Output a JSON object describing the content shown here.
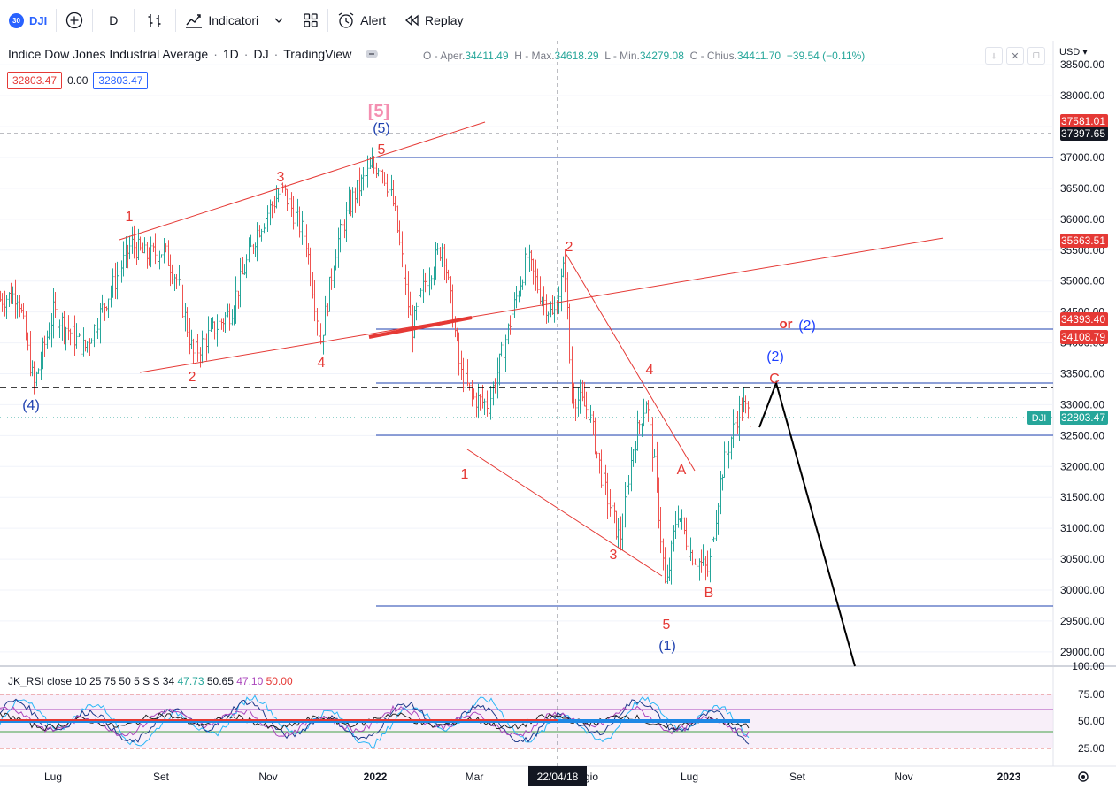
{
  "toolbar": {
    "symbol_badge": "30",
    "symbol": "DJI",
    "interval": "D",
    "indicators_label": "Indicatori",
    "alert_label": "Alert",
    "replay_label": "Replay"
  },
  "legend": {
    "title": "Indice Dow Jones Industrial Average",
    "interval": "1D",
    "exchange": "DJ",
    "source": "TradingView",
    "open_label": "O - Aper.",
    "open": "34411.49",
    "high_label": "H - Max.",
    "high": "34618.29",
    "low_label": "L - Min.",
    "low": "34279.08",
    "close_label": "C - Chius.",
    "close": "34411.70",
    "change": "−39.54",
    "change_pct": "(−0.11%)",
    "val1": "32803.47",
    "val2": "0.00",
    "val3": "32803.47"
  },
  "currency": "USD",
  "price_axis": [
    "38500.00",
    "38000.00",
    "37500.00",
    "37000.00",
    "36500.00",
    "36000.00",
    "35500.00",
    "35000.00",
    "34500.00",
    "34000.00",
    "33500.00",
    "33000.00",
    "32500.00",
    "32000.00",
    "31500.00",
    "31000.00",
    "30500.00",
    "30000.00",
    "29500.00",
    "29000.00"
  ],
  "price_tags": [
    {
      "label": "37581.01",
      "color": "#e53935"
    },
    {
      "label": "37397.65",
      "color": "#131722"
    },
    {
      "label": "35663.51",
      "color": "#e53935"
    },
    {
      "label": "34393.40",
      "color": "#e53935"
    },
    {
      "label": "34108.79",
      "color": "#e53935"
    },
    {
      "label": "32803.47",
      "color": "#26a69a"
    }
  ],
  "dji_tag": "DJI",
  "time_axis": [
    "Lug",
    "Set",
    "Nov",
    "2022",
    "Mar",
    "22/04/18",
    "gio",
    "Lug",
    "Set",
    "Nov",
    "2023"
  ],
  "rsi": {
    "legend_name": "JK_RSI",
    "legend_params": "close 10 25 75 50 5 S S 34",
    "v1": "47.73",
    "v2": "50.65",
    "v3": "47.10",
    "v4": "50.00",
    "axis": [
      "100.00",
      "75.00",
      "50.00",
      "25.00"
    ]
  },
  "wave_labels": {
    "five_bracket": "[5]",
    "five_paren": "(5)",
    "four_paren": "(4)",
    "one_paren": "(1)",
    "two_paren": "(2)",
    "or_two": "or",
    "two_blue": "(2)",
    "n1": "1",
    "n2": "2",
    "n3": "3",
    "n4": "4",
    "n5": "5",
    "m1": "1",
    "m2": "2",
    "m3": "3",
    "m4": "4",
    "m5": "5",
    "a": "A",
    "b": "B",
    "c": "C"
  },
  "colors": {
    "up": "#26a69a",
    "down": "#ef5350",
    "red": "#e53935",
    "blue": "#1e40af",
    "pink": "#f48fb1"
  }
}
